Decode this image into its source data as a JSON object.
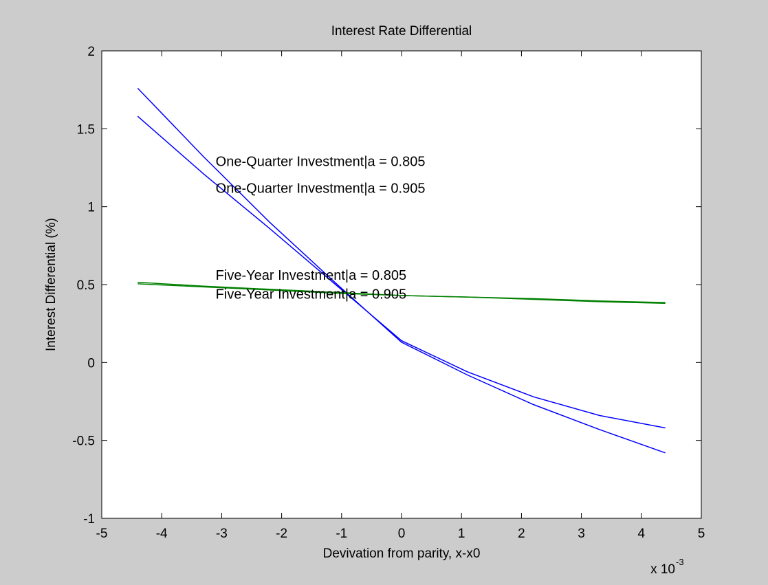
{
  "chart_data": {
    "type": "line",
    "title": "Interest Rate Differential",
    "xlabel": "Devivation from parity,  x-x0",
    "ylabel": "Interest Differential (%)",
    "x_multiplier": {
      "base": "x 10",
      "exponent": "-3"
    },
    "xlim": [
      -5,
      5
    ],
    "ylim": [
      -1,
      2
    ],
    "xticks": [
      -5,
      -4,
      -3,
      -2,
      -1,
      0,
      1,
      2,
      3,
      4,
      5
    ],
    "yticks": [
      -1,
      -0.5,
      0,
      0.5,
      1,
      1.5,
      2
    ],
    "xtick_labels": [
      "-5",
      "-4",
      "-3",
      "-2",
      "-1",
      "0",
      "1",
      "2",
      "3",
      "4",
      "5"
    ],
    "ytick_labels": [
      "-1",
      "-0.5",
      "0",
      "0.5",
      "1",
      "1.5",
      "2"
    ],
    "grid": false,
    "series": [
      {
        "color": "#0000ff",
        "x": [
          -4.4,
          -3.3,
          -2.2,
          -1.1,
          0,
          1.1,
          2.2,
          3.3,
          4.4
        ],
        "y": [
          1.76,
          1.32,
          0.9,
          0.51,
          0.13,
          -0.08,
          -0.27,
          -0.43,
          -0.58
        ]
      },
      {
        "color": "#0000ff",
        "x": [
          -4.4,
          -3.3,
          -2.2,
          -1.1,
          0,
          1.1,
          2.2,
          3.3,
          4.4
        ],
        "y": [
          1.58,
          1.21,
          0.86,
          0.5,
          0.14,
          -0.06,
          -0.22,
          -0.34,
          -0.42
        ]
      },
      {
        "color": "#008000",
        "x": [
          -4.4,
          -3.3,
          -2.2,
          -1.1,
          0,
          1.1,
          2.2,
          3.3,
          4.4
        ],
        "y": [
          0.515,
          0.49,
          0.47,
          0.45,
          0.43,
          0.42,
          0.41,
          0.395,
          0.385
        ]
      },
      {
        "color": "#008000",
        "x": [
          -4.4,
          -3.3,
          -2.2,
          -1.1,
          0,
          1.1,
          2.2,
          3.3,
          4.4
        ],
        "y": [
          0.505,
          0.485,
          0.465,
          0.445,
          0.43,
          0.42,
          0.405,
          0.39,
          0.38
        ]
      }
    ],
    "annotations": [
      {
        "text": "One-Quarter Investment|a = 0.805",
        "x": -3.1,
        "y": 1.26
      },
      {
        "text": "One-Quarter Investment|a = 0.905",
        "x": -3.1,
        "y": 1.09
      },
      {
        "text": "Five-Year Investment|a = 0.805",
        "x": -3.1,
        "y": 0.53
      },
      {
        "text": "Five-Year Investment|a = 0.905",
        "x": -3.1,
        "y": 0.41
      }
    ]
  }
}
